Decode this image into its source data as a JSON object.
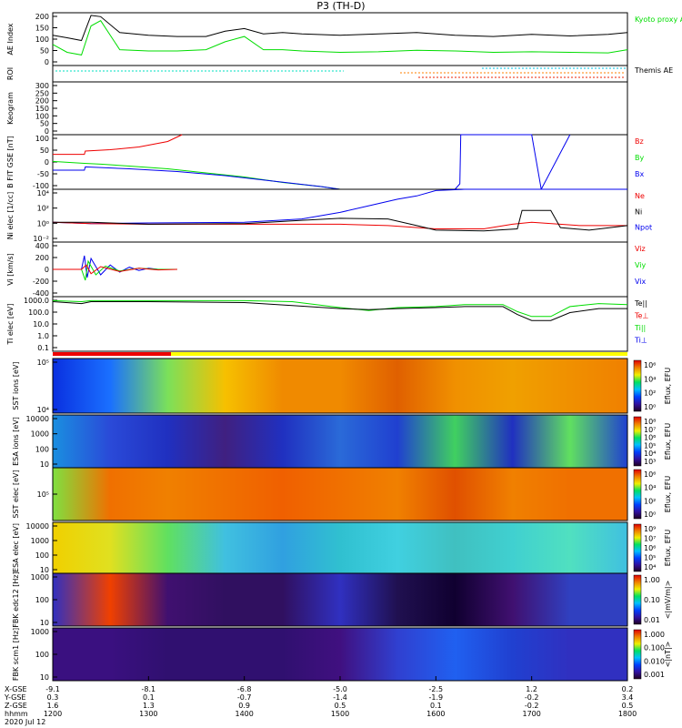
{
  "title": "P3 (TH-D)",
  "chart_data": {
    "type": "line",
    "xlabel": "hhmm",
    "date": "2020 Jul 12",
    "x_ticks": [
      "1200",
      "1300",
      "1400",
      "1500",
      "1600",
      "1700",
      "1800"
    ],
    "ephemeris": {
      "labels": [
        "X-GSE",
        "Y-GSE",
        "Z-GSE",
        "hhmm"
      ],
      "rows": [
        [
          "-9.1",
          "-8.1",
          "-6.8",
          "-5.0",
          "-2.5",
          "1.2",
          "0.2"
        ],
        [
          "0.3",
          "0.1",
          "-0.7",
          "-1.4",
          "-1.9",
          "-0.2",
          "3.4"
        ],
        [
          "1.6",
          "1.3",
          "0.9",
          "0.5",
          "0.1",
          "-0.2",
          "0.5"
        ],
        [
          "1200",
          "1300",
          "1400",
          "1500",
          "1600",
          "1700",
          "1800"
        ]
      ]
    },
    "panels": [
      {
        "id": "ae",
        "ylabel": "AE Index",
        "ticks": [
          "200",
          "150",
          "100",
          "50",
          "0"
        ],
        "ylim": [
          0,
          200
        ],
        "legend": [
          {
            "text": "Kyoto proxy AE",
            "color": "#00dd00"
          },
          {
            "text": "Themis AE",
            "color": "#000000"
          }
        ],
        "series": [
          {
            "name": "Themis AE",
            "color": "#000000",
            "x": [
              12.0,
              12.15,
              12.3,
              12.4,
              12.5,
              12.7,
              13.0,
              13.3,
              13.6,
              13.8,
              14.0,
              14.2,
              14.4,
              14.6,
              15.0,
              15.4,
              15.8,
              16.2,
              16.6,
              17.0,
              17.4,
              17.8,
              18.0
            ],
            "y": [
              115,
              105,
              95,
              190,
              185,
              125,
              115,
              110,
              110,
              130,
              140,
              120,
              125,
              120,
              115,
              120,
              125,
              115,
              110,
              118,
              112,
              118,
              125
            ]
          },
          {
            "name": "Kyoto proxy AE",
            "color": "#00dd00",
            "x": [
              12.0,
              12.15,
              12.3,
              12.4,
              12.5,
              12.7,
              13.0,
              13.3,
              13.6,
              13.8,
              14.0,
              14.2,
              14.4,
              14.6,
              15.0,
              15.4,
              15.8,
              16.2,
              16.6,
              17.0,
              17.4,
              17.8,
              18.0
            ],
            "y": [
              80,
              50,
              40,
              150,
              170,
              60,
              55,
              55,
              60,
              90,
              110,
              60,
              60,
              55,
              50,
              52,
              58,
              55,
              50,
              52,
              50,
              48,
              60
            ]
          }
        ]
      },
      {
        "id": "roi",
        "ylabel": "ROI",
        "ticks": [],
        "legend": []
      },
      {
        "id": "keogram",
        "ylabel": "Keogram",
        "ticks": [
          "300",
          "250",
          "200",
          "150",
          "100",
          "50",
          "0"
        ],
        "legend": []
      },
      {
        "id": "bfit",
        "ylabel": "B FIT GSE [nT]",
        "ticks": [
          "100",
          "50",
          "0",
          "-50",
          "-100"
        ],
        "ylim": [
          -100,
          100
        ],
        "legend": [
          {
            "text": "Bz",
            "color": "#ee0000"
          },
          {
            "text": "By",
            "color": "#00dd00"
          },
          {
            "text": "Bx",
            "color": "#0000ee"
          }
        ],
        "series": [
          {
            "name": "Bz",
            "color": "#ee0000",
            "x": [
              12.0,
              12.33,
              12.34,
              12.6,
              12.9,
              13.2,
              13.35
            ],
            "y": [
              28,
              28,
              40,
              45,
              55,
              75,
              100
            ]
          },
          {
            "name": "By",
            "color": "#00dd00",
            "x": [
              12.0,
              12.33,
              12.5,
              12.8,
              13.2,
              13.6,
              14.0,
              14.4,
              14.8,
              15.0
            ],
            "y": [
              2,
              -5,
              -8,
              -15,
              -25,
              -40,
              -55,
              -75,
              -90,
              -100
            ]
          },
          {
            "name": "Bx",
            "color": "#0000ee",
            "x": [
              12.0,
              12.33,
              12.34,
              12.8,
              13.3,
              13.8,
              14.3,
              14.8,
              15.0,
              16.0,
              16.2,
              16.25,
              16.26,
              17.0,
              17.1,
              17.4
            ],
            "y": [
              -30,
              -30,
              -18,
              -25,
              -35,
              -50,
              -70,
              -90,
              -100,
              -100,
              -100,
              -80,
              100,
              100,
              -100,
              100
            ]
          }
        ]
      },
      {
        "id": "ni",
        "ylabel": "Ni elec [1/cc]",
        "ticks": [
          "10⁴",
          "10²",
          "10⁰",
          "10⁻²"
        ],
        "ylim": [
          -3,
          5
        ],
        "legend": [
          {
            "text": "Ne",
            "color": "#ee0000"
          },
          {
            "text": "Ni",
            "color": "#000000"
          },
          {
            "text": "Npot",
            "color": "#0000ee"
          }
        ],
        "series": [
          {
            "name": "Npot",
            "color": "#0000ee",
            "x": [
              12.0,
              12.4,
              13.0,
              14.0,
              14.6,
              15.0,
              15.3,
              15.6,
              15.8,
              16.0,
              16.3,
              17.0,
              18.0
            ],
            "y": [
              0,
              -0.2,
              -0.1,
              0,
              0.5,
              1.5,
              2.5,
              3.5,
              4,
              4.8,
              5,
              5,
              5
            ]
          },
          {
            "name": "Ne",
            "color": "#ee0000",
            "x": [
              12.0,
              12.4,
              13.0,
              14.0,
              15.0,
              15.5,
              16.0,
              16.5,
              16.8,
              17.0,
              17.5,
              18.0
            ],
            "y": [
              0,
              -0.2,
              -0.3,
              -0.3,
              -0.3,
              -0.5,
              -1,
              -1,
              -0.3,
              0,
              -0.5,
              -0.5
            ]
          },
          {
            "name": "Ni",
            "color": "#000000",
            "x": [
              12.0,
              12.4,
              13.0,
              14.0,
              14.6,
              15.0,
              15.5,
              15.8,
              16.0,
              16.5,
              16.85,
              16.9,
              17.2,
              17.3,
              17.6,
              18.0
            ],
            "y": [
              0,
              0,
              -0.3,
              -0.2,
              0.3,
              0.6,
              0.5,
              -0.5,
              -1.2,
              -1.3,
              -1,
              1.8,
              1.8,
              -0.8,
              -1.2,
              -0.5
            ]
          }
        ]
      },
      {
        "id": "vi",
        "ylabel": "Vi [km/s]",
        "ticks": [
          "400",
          "200",
          "0",
          "-200",
          "-400"
        ],
        "ylim": [
          -500,
          500
        ],
        "legend": [
          {
            "text": "Viz",
            "color": "#ee0000"
          },
          {
            "text": "Viy",
            "color": "#00dd00"
          },
          {
            "text": "Vix",
            "color": "#0000ee"
          }
        ],
        "series": [
          {
            "name": "Vix",
            "color": "#0000ee",
            "x": [
              12.0,
              12.3,
              12.33,
              12.36,
              12.4,
              12.5,
              12.6,
              12.7,
              12.8,
              12.9,
              13.0,
              13.1,
              13.3
            ],
            "y": [
              0,
              0,
              250,
              -150,
              200,
              -100,
              80,
              -50,
              40,
              -20,
              20,
              0,
              0
            ]
          },
          {
            "name": "Viy",
            "color": "#00dd00",
            "x": [
              12.0,
              12.3,
              12.34,
              12.37,
              12.45,
              12.55,
              12.7,
              12.9,
              13.1,
              13.3
            ],
            "y": [
              0,
              0,
              -200,
              150,
              -100,
              60,
              -30,
              20,
              0,
              0
            ]
          },
          {
            "name": "Viz",
            "color": "#ee0000",
            "x": [
              12.0,
              12.3,
              12.35,
              12.4,
              12.5,
              12.7,
              12.9,
              13.1,
              13.3
            ],
            "y": [
              0,
              0,
              80,
              -80,
              50,
              -40,
              20,
              -10,
              0
            ]
          }
        ]
      },
      {
        "id": "ti",
        "ylabel": "Ti elec [eV]",
        "ticks": [
          "1000.0",
          "100.0",
          "10.0",
          "1.0",
          "0.1"
        ],
        "ylim": [
          -1.5,
          4
        ],
        "legend": [
          {
            "text": "Te||",
            "color": "#000000"
          },
          {
            "text": "Te⊥",
            "color": "#ee0000"
          },
          {
            "text": "Ti||",
            "color": "#00dd00"
          },
          {
            "text": "Ti⊥",
            "color": "#0000ee"
          }
        ],
        "series": [
          {
            "name": "Ti||",
            "color": "#00dd00",
            "x": [
              12.0,
              12.3,
              12.4,
              13.0,
              14.0,
              14.5,
              15.0,
              15.3,
              15.6,
              16.0,
              16.3,
              16.7,
              16.85,
              17.0,
              17.2,
              17.4,
              17.7,
              18.0
            ],
            "y": [
              3.6,
              3.5,
              3.6,
              3.6,
              3.6,
              3.5,
              2.9,
              2.6,
              2.9,
              3.0,
              3.2,
              3.2,
              2.5,
              2.0,
              2.0,
              3.0,
              3.3,
              3.2
            ]
          },
          {
            "name": "Te||",
            "color": "#000000",
            "x": [
              12.0,
              12.3,
              12.4,
              13.0,
              14.0,
              14.5,
              15.0,
              15.3,
              15.6,
              16.0,
              16.3,
              16.7,
              16.85,
              17.0,
              17.2,
              17.4,
              17.7,
              18.0
            ],
            "y": [
              3.5,
              3.3,
              3.5,
              3.5,
              3.4,
              3.1,
              2.8,
              2.7,
              2.8,
              2.9,
              3.0,
              3.0,
              2.2,
              1.6,
              1.6,
              2.4,
              2.8,
              2.8
            ]
          }
        ]
      },
      {
        "id": "sst_ion",
        "ylabel": "SST ions [eV]",
        "ticks": [
          "10⁵",
          "10⁴"
        ],
        "legend": [],
        "colorbar": [
          "10⁶",
          "10⁴",
          "10²",
          "10⁰"
        ],
        "cbar_label": "Eflux, EFU"
      },
      {
        "id": "esa_ion",
        "ylabel": "ESA ions [eV]",
        "ticks": [
          "10000",
          "1000",
          "100",
          "10"
        ],
        "legend": [],
        "colorbar": [
          "10⁸",
          "10⁷",
          "10⁶",
          "10⁵",
          "10⁴",
          "10³"
        ],
        "cbar_label": "Eflux, EFU"
      },
      {
        "id": "sst_elec",
        "ylabel": "SST elec [eV]",
        "ticks": [
          "10⁵"
        ],
        "legend": [],
        "colorbar": [
          "10⁶",
          "10⁴",
          "10²",
          "10⁰"
        ],
        "cbar_label": "Eflux, EFU"
      },
      {
        "id": "esa_elec",
        "ylabel": "ESA elec [eV]",
        "ticks": [
          "10000",
          "1000",
          "100",
          "10"
        ],
        "legend": [],
        "colorbar": [
          "10⁹",
          "10⁷",
          "10⁶",
          "10⁵",
          "10⁴"
        ],
        "cbar_label": "Eflux, EFU"
      },
      {
        "id": "fbk_edc12",
        "ylabel": "FBK edc12 [Hz]",
        "ticks": [
          "1000",
          "100",
          "10"
        ],
        "legend": [],
        "colorbar": [
          "1.00",
          "0.10",
          "0.01"
        ],
        "cbar_label": "<|mV/m|>"
      },
      {
        "id": "fbk_scm1",
        "ylabel": "FBK scm1 [Hz]",
        "ticks": [
          "1000",
          "100",
          "10"
        ],
        "legend": [],
        "colorbar": [
          "1.000",
          "0.100",
          "0.010",
          "0.001"
        ],
        "cbar_label": "<|nT|>"
      }
    ]
  }
}
